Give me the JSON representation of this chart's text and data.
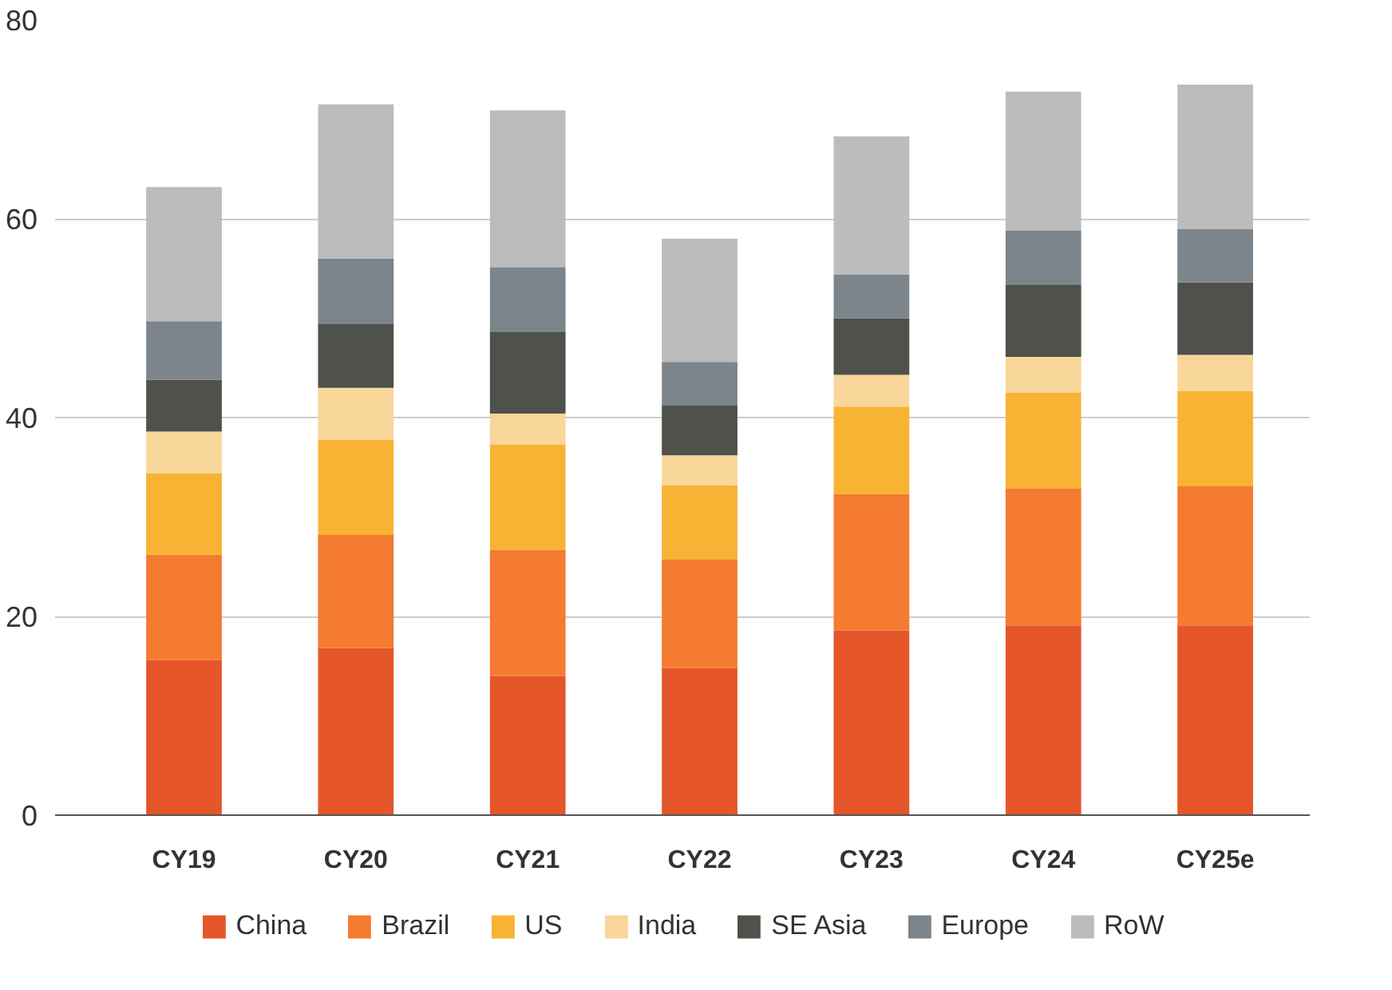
{
  "chart_data": {
    "type": "bar",
    "stacked": true,
    "categories": [
      "CY19",
      "CY20",
      "CY21",
      "CY22",
      "CY23",
      "CY24",
      "CY25e"
    ],
    "series": [
      {
        "name": "China",
        "color": "#e5562a",
        "values": [
          15.6,
          16.8,
          14.0,
          14.8,
          18.6,
          19.1,
          19.1
        ]
      },
      {
        "name": "Brazil",
        "color": "#f47b30",
        "values": [
          10.6,
          11.4,
          12.7,
          10.9,
          13.7,
          13.8,
          14.0
        ]
      },
      {
        "name": "US",
        "color": "#f8b334",
        "values": [
          8.2,
          9.6,
          10.6,
          7.5,
          8.8,
          9.6,
          9.6
        ]
      },
      {
        "name": "India",
        "color": "#f9d69a",
        "values": [
          4.2,
          5.2,
          3.1,
          3.0,
          3.2,
          3.6,
          3.6
        ]
      },
      {
        "name": "SE Asia",
        "color": "#4f524a",
        "values": [
          5.2,
          6.4,
          8.2,
          5.0,
          5.7,
          7.3,
          7.3
        ]
      },
      {
        "name": "Europe",
        "color": "#7c858c",
        "values": [
          5.9,
          6.6,
          6.5,
          4.4,
          4.4,
          5.4,
          5.4
        ]
      },
      {
        "name": "RoW",
        "color": "#bcbcbc",
        "values": [
          13.5,
          15.5,
          15.8,
          12.4,
          13.9,
          14.0,
          14.5
        ]
      }
    ],
    "ylim": [
      0,
      80
    ],
    "yticks": [
      0,
      20,
      40,
      60,
      80
    ],
    "grid": "y",
    "legend": "bottom"
  }
}
